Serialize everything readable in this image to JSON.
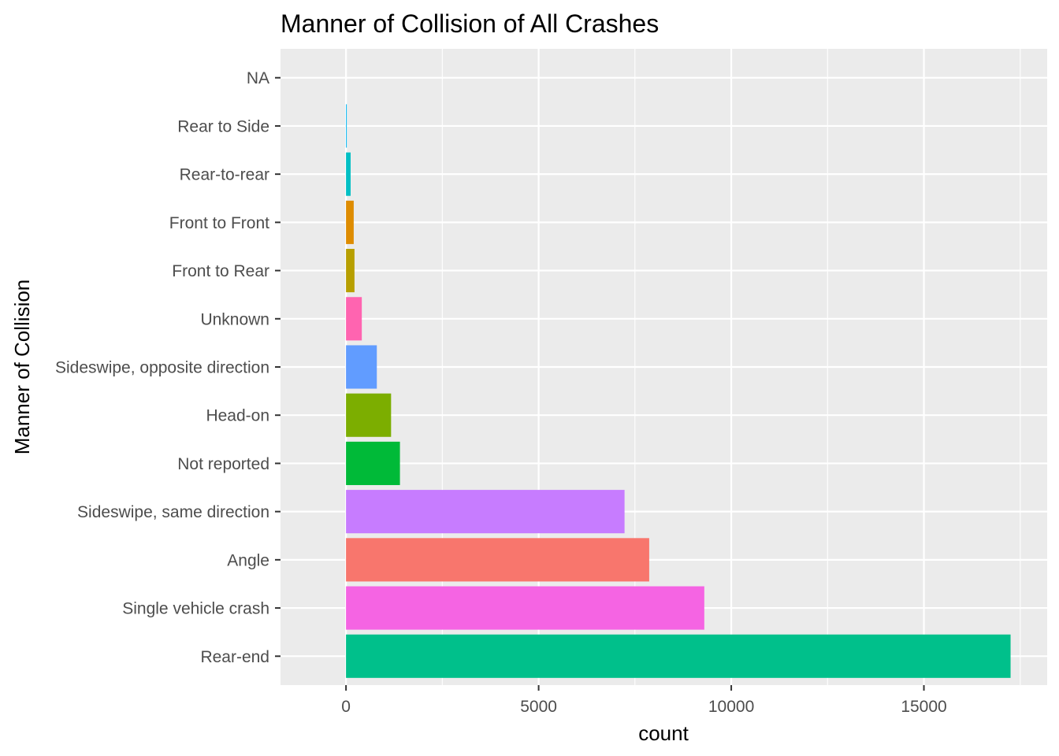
{
  "chart_data": {
    "type": "bar",
    "orientation": "horizontal",
    "title": "Manner of Collision of All Crashes",
    "xlabel": "count",
    "ylabel": "Manner of Collision",
    "xlim": [
      -1700,
      18200
    ],
    "x_ticks": [
      0,
      5000,
      10000,
      15000
    ],
    "x_tick_labels": [
      "0",
      "5000",
      "10000",
      "15000"
    ],
    "grid": true,
    "legend": "none",
    "panel_background": "#ebebeb",
    "grid_color": "#ffffff",
    "tick_label_color": "#4d4d4d",
    "categories": [
      "Rear-end",
      "Single vehicle crash",
      "Angle",
      "Sideswipe, same direction",
      "Not reported",
      "Head-on",
      "Sideswipe, opposite direction",
      "Unknown",
      "Front to Rear",
      "Front to Front",
      "Rear-to-rear",
      "Rear to Side",
      "NA"
    ],
    "values": [
      17250,
      9300,
      7870,
      7230,
      1400,
      1170,
      800,
      410,
      220,
      200,
      120,
      20,
      0
    ],
    "colors": [
      "#00c08b",
      "#f564e3",
      "#f8766d",
      "#c77cff",
      "#00ba38",
      "#7cae00",
      "#619cff",
      "#ff64b0",
      "#b79f00",
      "#de8c00",
      "#00bfc4",
      "#00b4f0",
      "#999999"
    ]
  }
}
